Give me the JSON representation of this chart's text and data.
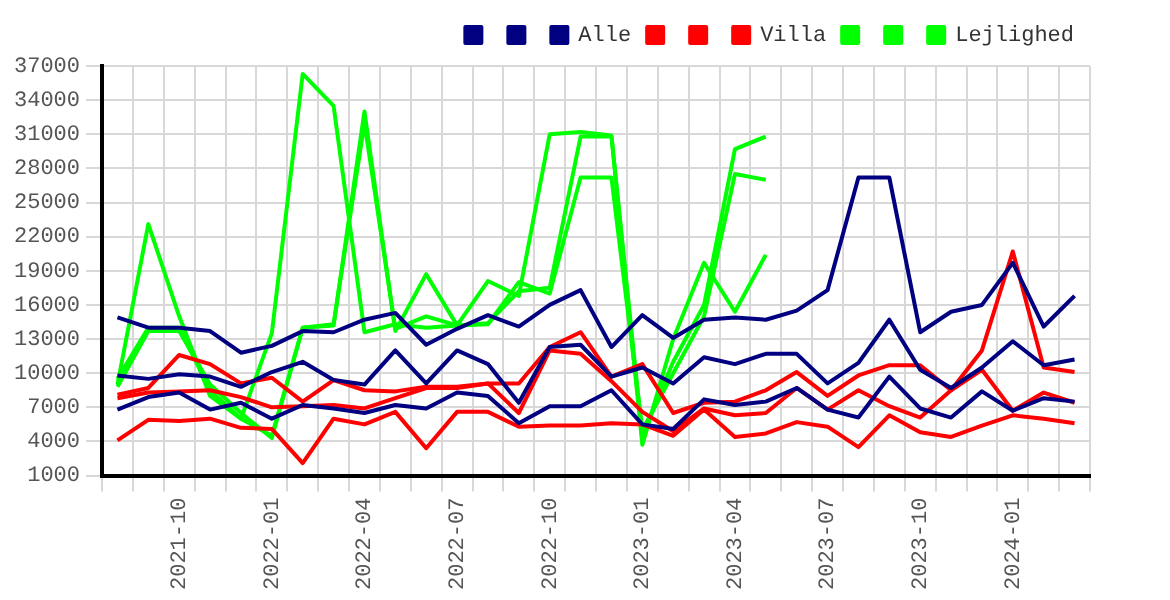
{
  "chart_data": {
    "type": "line",
    "categories": [
      null,
      null,
      "2021-10",
      null,
      null,
      "2022-01",
      null,
      null,
      "2022-04",
      null,
      null,
      "2022-07",
      null,
      null,
      "2022-10",
      null,
      null,
      "2023-01",
      null,
      null,
      "2023-04",
      null,
      null,
      "2023-07",
      null,
      null,
      "2023-10",
      null,
      null,
      "2024-01",
      null,
      null
    ],
    "series": [
      {
        "color": "#000080",
        "values": [
          14900,
          14000,
          14000,
          13700,
          11800,
          12400,
          13700,
          13600,
          14700,
          15300,
          12500,
          13900,
          15100,
          14100,
          16000,
          17300,
          12300,
          15100,
          13100,
          14700,
          14900,
          14700,
          15500,
          17300,
          27200,
          27200,
          13600,
          15400,
          16000,
          19700,
          14100,
          16800
        ]
      },
      {
        "color": "#000080",
        "values": [
          9800,
          9500,
          9900,
          9700,
          8800,
          10100,
          11000,
          9400,
          9000,
          12000,
          9100,
          12000,
          10800,
          7400,
          12300,
          12500,
          9700,
          10500,
          9100,
          11400,
          10800,
          11700,
          11700,
          9100,
          10900,
          14700,
          10300,
          8700,
          10500,
          12800,
          10700,
          11200
        ]
      },
      {
        "name": "Alle",
        "color": "#000080",
        "values": [
          6800,
          7900,
          8300,
          6800,
          7400,
          6000,
          7200,
          6900,
          6500,
          7200,
          6900,
          8300,
          8000,
          5600,
          7100,
          7100,
          8500,
          5500,
          5100,
          7700,
          7200,
          7500,
          8700,
          6800,
          6100,
          9700,
          6900,
          6100,
          8400,
          6700,
          7800,
          7500
        ]
      },
      {
        "color": "#ff0000",
        "values": [
          8100,
          8700,
          11600,
          10800,
          9100,
          9600,
          7500,
          9400,
          8500,
          8400,
          8800,
          8800,
          9100,
          9100,
          12300,
          13600,
          9700,
          10800,
          6500,
          7400,
          7500,
          8500,
          10100,
          8000,
          9800,
          10700,
          10700,
          8500,
          12000,
          20700,
          10500,
          10100
        ]
      },
      {
        "color": "#ff0000",
        "values": [
          7800,
          8300,
          8400,
          8500,
          7900,
          7000,
          7100,
          7200,
          6900,
          7800,
          8700,
          8700,
          9100,
          6500,
          12000,
          11700,
          9300,
          6600,
          4900,
          6900,
          6300,
          6500,
          8700,
          6800,
          8500,
          7100,
          6100,
          8500,
          10300,
          6700,
          8300,
          7400
        ]
      },
      {
        "name": "Villa",
        "color": "#ff0000",
        "values": [
          4100,
          5900,
          5800,
          6000,
          5200,
          5100,
          2100,
          6000,
          5500,
          6600,
          3400,
          6600,
          6600,
          5300,
          5400,
          5400,
          5600,
          5500,
          4500,
          6800,
          4400,
          4700,
          5700,
          5300,
          3500,
          6300,
          4800,
          4400,
          5400,
          6300,
          6000,
          5600
        ]
      },
      {
        "color": "#00ff00",
        "values": [
          9000,
          23100,
          15000,
          8000,
          6000,
          13500,
          36300,
          33500,
          13600,
          14300,
          14000,
          14200,
          18100,
          16800,
          31000,
          31200,
          30900,
          3700,
          13000,
          19700,
          15400,
          20400,
          null,
          null,
          null,
          null,
          null,
          null,
          null,
          null,
          null,
          null
        ]
      },
      {
        "color": "#00ff00",
        "values": [
          8800,
          13700,
          13700,
          9000,
          6500,
          4300,
          14000,
          14200,
          33000,
          13700,
          18700,
          14200,
          14300,
          18000,
          17000,
          27200,
          27200,
          5000,
          10000,
          15000,
          27500,
          27000,
          null,
          null,
          null,
          null,
          null,
          null,
          null,
          null,
          null,
          null
        ]
      },
      {
        "name": "Lejlighed",
        "color": "#00ff00",
        "values": [
          9500,
          14000,
          14000,
          8500,
          6000,
          4500,
          14000,
          14300,
          32000,
          13900,
          15000,
          14200,
          14400,
          17200,
          17500,
          30800,
          30800,
          4500,
          11000,
          16000,
          29700,
          30800,
          null,
          null,
          null,
          null,
          null,
          null,
          null,
          null,
          null,
          null
        ]
      }
    ],
    "ylim": [
      1000,
      37000
    ],
    "yticks": [
      1000,
      4000,
      7000,
      10000,
      13000,
      16000,
      19000,
      22000,
      25000,
      28000,
      31000,
      34000,
      37000
    ],
    "grid": true,
    "legend": "top right",
    "marker": "none",
    "line_style": "solid"
  }
}
